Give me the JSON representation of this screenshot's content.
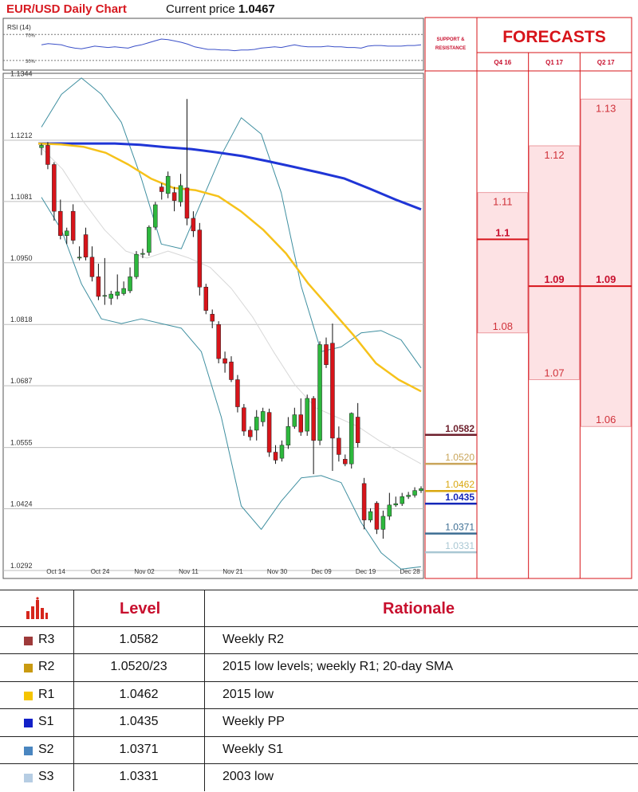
{
  "header": {
    "title": "EUR/USD Daily Chart",
    "price_label": "Current price",
    "price_value": "1.0467"
  },
  "rsi": {
    "label": "RSI (14)",
    "levels": [
      "70%",
      "30%"
    ],
    "values": [
      54,
      56,
      55,
      54,
      51,
      49,
      48,
      50,
      52,
      51,
      50,
      51,
      50,
      49,
      52,
      54,
      57,
      60,
      63,
      62,
      60,
      58,
      55,
      51,
      49,
      47,
      47,
      46,
      46,
      45,
      46,
      46,
      47,
      49,
      50,
      51,
      50,
      52,
      54,
      52,
      51,
      51,
      51,
      52,
      51,
      51,
      50,
      50,
      49,
      52,
      53,
      53,
      52,
      52,
      52,
      53,
      53,
      54
    ]
  },
  "side_panel": {
    "support_resistance_label": "SUPPORT & RESISTANCE",
    "forecasts_title": "FORECASTS",
    "quarters": [
      "Q4 16",
      "Q1 17",
      "Q2 17"
    ],
    "forecast_columns": [
      {
        "high": "1.11",
        "mid": "1.1",
        "low": "1.08"
      },
      {
        "high": "1.12",
        "mid": "1.09",
        "low": "1.07"
      },
      {
        "high": "1.13",
        "mid": "1.09",
        "low": "1.06"
      }
    ],
    "levels": [
      {
        "label": "1.0582",
        "color": "#6d1f2c",
        "bold": true
      },
      {
        "label": "1.0520",
        "color": "#c9a55a",
        "bold": false
      },
      {
        "label": "1.0462",
        "color": "#d9a70f",
        "bold": false
      },
      {
        "label": "1.0435",
        "color": "#1426b8",
        "bold": true
      },
      {
        "label": "1.0371",
        "color": "#3d6e93",
        "bold": false
      },
      {
        "label": "1.0331",
        "color": "#a9c7d3",
        "bold": false
      }
    ]
  },
  "chart_data": {
    "type": "candlestick",
    "title": "EUR/USD Daily Chart",
    "y_ticks": [
      "1.1344",
      "1.1212",
      "1.1081",
      "1.0950",
      "1.0818",
      "1.0687",
      "1.0555",
      "1.0424",
      "1.0292"
    ],
    "x_ticks": [
      "Oct 14",
      "Oct 24",
      "Nov 02",
      "Nov 11",
      "Nov 21",
      "Nov 30",
      "Dec 09",
      "Dec 19",
      "Dec 28"
    ],
    "ylim": [
      1.0275,
      1.1355
    ],
    "candles": [
      [
        1.1196,
        1.1201,
        1.118,
        1.1205
      ],
      [
        1.1201,
        1.116,
        1.115,
        1.1208
      ],
      [
        1.116,
        1.106,
        1.104,
        1.1165
      ],
      [
        1.106,
        1.1008,
        1.1,
        1.1085
      ],
      [
        1.1008,
        1.1018,
        1.099,
        1.1025
      ],
      [
        1.106,
        1.0998,
        1.099,
        1.1075
      ],
      [
        1.096,
        1.0962,
        1.0955,
        1.0985
      ],
      [
        1.101,
        1.0962,
        1.0955,
        1.1025
      ],
      [
        1.0962,
        1.092,
        1.091,
        1.0985
      ],
      [
        1.092,
        1.0878,
        1.087,
        1.0948
      ],
      [
        1.088,
        1.088,
        1.086,
        1.096
      ],
      [
        1.0874,
        1.0883,
        1.086,
        1.089
      ],
      [
        1.088,
        1.0888,
        1.0872,
        1.0925
      ],
      [
        1.0884,
        1.0895,
        1.088,
        1.091
      ],
      [
        1.089,
        1.092,
        1.0885,
        1.094
      ],
      [
        1.092,
        1.0968,
        1.0915,
        1.0975
      ],
      [
        1.0968,
        1.097,
        1.096,
        1.098
      ],
      [
        1.0972,
        1.1026,
        1.0965,
        1.103
      ],
      [
        1.1026,
        1.1074,
        1.102,
        1.108
      ],
      [
        1.1112,
        1.1102,
        1.1085,
        1.112
      ],
      [
        1.1098,
        1.1135,
        1.1088,
        1.1145
      ],
      [
        1.11,
        1.1083,
        1.106,
        1.1112
      ],
      [
        1.108,
        1.1115,
        1.107,
        1.114
      ],
      [
        1.111,
        1.1045,
        1.103,
        1.13
      ],
      [
        1.1045,
        1.1018,
        1.1005,
        1.106
      ],
      [
        1.102,
        1.0898,
        1.088,
        1.1035
      ],
      [
        1.0898,
        1.0848,
        1.084,
        1.0905
      ],
      [
        1.084,
        1.0825,
        1.081,
        1.085
      ],
      [
        1.0818,
        1.0745,
        1.0735,
        1.0825
      ],
      [
        1.0745,
        1.0735,
        1.0715,
        1.076
      ],
      [
        1.0738,
        1.07,
        1.0695,
        1.075
      ],
      [
        1.07,
        1.0642,
        1.063,
        1.071
      ],
      [
        1.064,
        1.059,
        1.058,
        1.0648
      ],
      [
        1.0592,
        1.0578,
        1.057,
        1.06
      ],
      [
        1.0592,
        1.062,
        1.057,
        1.0635
      ],
      [
        1.061,
        1.0632,
        1.06,
        1.064
      ],
      [
        1.063,
        1.0545,
        1.0535,
        1.0638
      ],
      [
        1.0545,
        1.0528,
        1.052,
        1.056
      ],
      [
        1.0532,
        1.056,
        1.0525,
        1.057
      ],
      [
        1.056,
        1.06,
        1.0552,
        1.062
      ],
      [
        1.06,
        1.0625,
        1.0595,
        1.064
      ],
      [
        1.0625,
        1.0588,
        1.058,
        1.066
      ],
      [
        1.059,
        1.066,
        1.058,
        1.0668
      ],
      [
        1.066,
        1.057,
        1.0498,
        1.0665
      ],
      [
        1.057,
        1.0775,
        1.056,
        1.0782
      ],
      [
        1.0775,
        1.0732,
        1.0725,
        1.079
      ],
      [
        1.0778,
        1.0575,
        1.0505,
        1.082
      ],
      [
        1.0575,
        1.054,
        1.0525,
        1.06
      ],
      [
        1.053,
        1.052,
        1.0515,
        1.054
      ],
      [
        1.052,
        1.0628,
        1.051,
        1.063
      ],
      [
        1.062,
        1.0565,
        1.0555,
        1.065
      ],
      [
        1.0478,
        1.04,
        1.038,
        1.049
      ],
      [
        1.04,
        1.0418,
        1.0395,
        1.0425
      ],
      [
        1.0436,
        1.038,
        1.037,
        1.044
      ],
      [
        1.038,
        1.0408,
        1.036,
        1.042
      ],
      [
        1.0408,
        1.0432,
        1.04,
        1.0458
      ],
      [
        1.0432,
        1.0435,
        1.0428,
        1.045
      ],
      [
        1.0435,
        1.045,
        1.043,
        1.0458
      ],
      [
        1.045,
        1.0453,
        1.0445,
        1.046
      ],
      [
        1.0453,
        1.0463,
        1.0448,
        1.047
      ],
      [
        1.0463,
        1.0467,
        1.0458,
        1.0472
      ]
    ],
    "sma_long": [
      1.1205,
      1.1205,
      1.1205,
      1.1205,
      1.1202,
      1.1197,
      1.1193,
      1.1186,
      1.1178,
      1.1167,
      1.1155,
      1.1143,
      1.113,
      1.1108,
      1.1085,
      1.1064
    ],
    "sma_mid": [
      1.1205,
      1.1203,
      1.1198,
      1.1185,
      1.116,
      1.113,
      1.111,
      1.1105,
      1.1092,
      1.106,
      1.102,
      1.097,
      1.0905,
      1.085,
      1.0795,
      1.0735,
      1.07,
      1.0675
    ],
    "bb_upper": [
      1.124,
      1.131,
      1.1345,
      1.131,
      1.125,
      1.113,
      1.099,
      1.098,
      1.108,
      1.118,
      1.126,
      1.1225,
      1.11,
      1.09,
      1.076,
      1.077,
      1.08,
      1.0805,
      1.0785,
      1.0725
    ],
    "bb_lower": [
      1.109,
      1.102,
      1.0905,
      1.083,
      1.082,
      1.083,
      1.082,
      1.081,
      1.076,
      1.062,
      1.043,
      1.038,
      1.044,
      1.049,
      1.0495,
      1.048,
      1.0395,
      1.033,
      1.0295,
      1.03
    ],
    "bb_mid": [
      1.1195,
      1.115,
      1.108,
      1.102,
      1.0975,
      1.096,
      1.0975,
      1.096,
      1.094,
      1.0895,
      1.0835,
      1.076,
      1.069,
      1.064,
      1.062,
      1.06,
      1.057,
      1.0545,
      1.052
    ],
    "colors": {
      "up": "#2db83d",
      "down": "#d7141a",
      "sma_long": "#1f35d6",
      "sma_mid": "#f6c21a",
      "bb": "#3f8fa0",
      "bb_mid": "#d8d8d8"
    }
  },
  "levels_table": {
    "headers": {
      "level": "Level",
      "rationale": "Rationale"
    },
    "rows": [
      {
        "name": "R3",
        "value": "1.0582",
        "rationale": "Weekly R2",
        "color": "#9e3a3a"
      },
      {
        "name": "R2",
        "value": "1.0520/23",
        "rationale": "2015 low levels; weekly R1; 20-day SMA",
        "color": "#c99a11"
      },
      {
        "name": "R1",
        "value": "1.0462",
        "rationale": "2015 low",
        "color": "#f5c400"
      },
      {
        "name": "S1",
        "value": "1.0435",
        "rationale": "Weekly PP",
        "color": "#1220c8"
      },
      {
        "name": "S2",
        "value": "1.0371",
        "rationale": "Weekly S1",
        "color": "#4a86c0"
      },
      {
        "name": "S3",
        "value": "1.0331",
        "rationale": "2003 low",
        "color": "#b6cde3"
      }
    ]
  }
}
